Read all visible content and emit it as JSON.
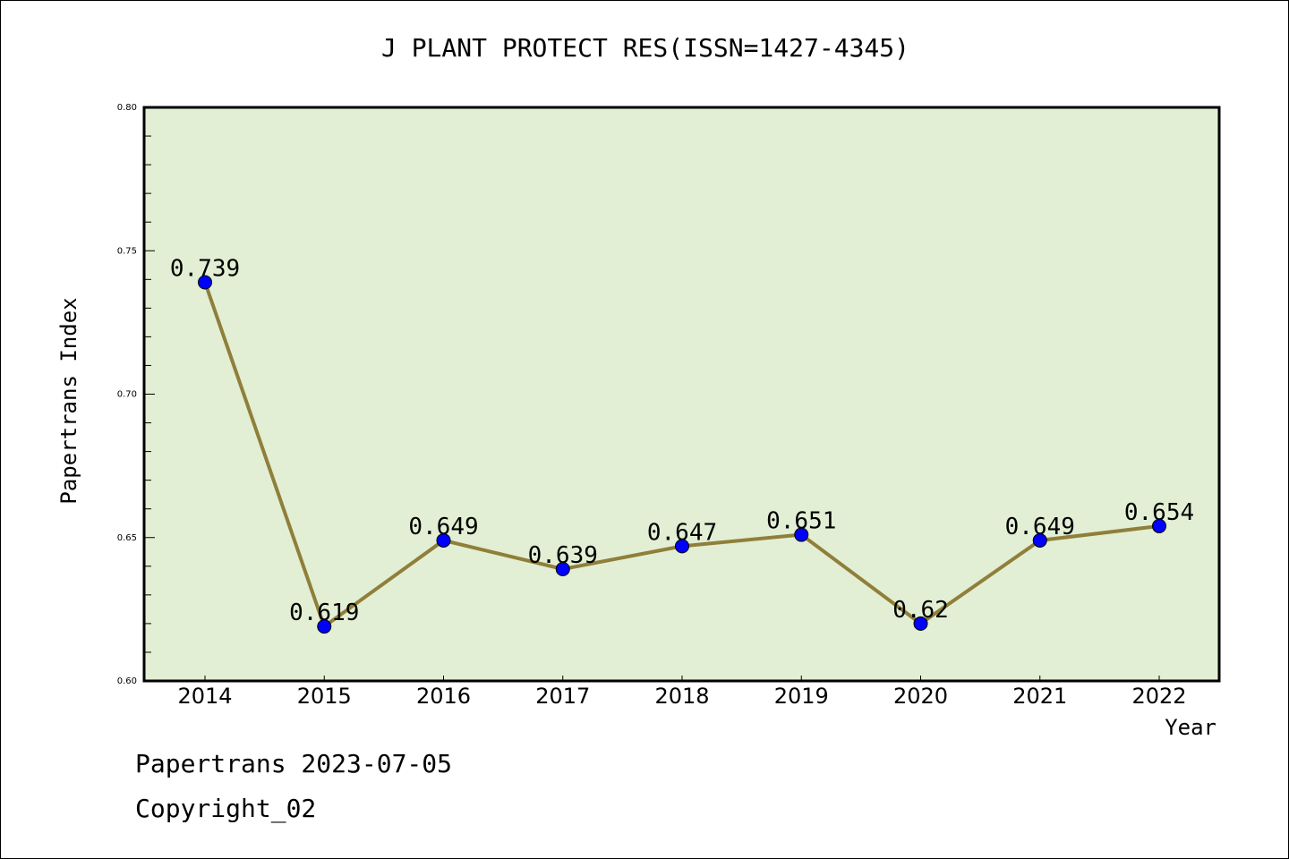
{
  "chart_data": {
    "type": "line",
    "title": "J PLANT PROTECT RES(ISSN=1427-4345)",
    "xlabel": "Year",
    "ylabel": "Papertrans Index",
    "categories": [
      "2014",
      "2015",
      "2016",
      "2017",
      "2018",
      "2019",
      "2020",
      "2021",
      "2022"
    ],
    "series": [
      {
        "name": "Papertrans Index",
        "values": [
          0.739,
          0.619,
          0.649,
          0.639,
          0.647,
          0.651,
          0.62,
          0.649,
          0.654
        ]
      }
    ],
    "data_labels": [
      "0.739",
      "0.619",
      "0.649",
      "0.639",
      "0.647",
      "0.651",
      "0.62",
      "0.649",
      "0.654"
    ],
    "ylim": [
      0.6,
      0.8
    ],
    "yticks": [
      "0.60",
      "0.65",
      "0.70",
      "0.75",
      "0.80"
    ],
    "grid": false,
    "colors": {
      "background": "#e2efd4",
      "line": "#8f7f3a",
      "marker": "#0000ff"
    }
  },
  "footer": {
    "line1": "Papertrans 2023-07-05",
    "line2": "Copyright_02"
  }
}
